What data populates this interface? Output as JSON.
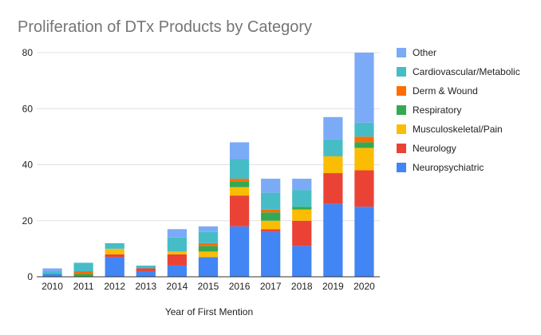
{
  "chart_data": {
    "type": "bar",
    "stacked": true,
    "title": "Proliferation of DTx Products by Category",
    "xlabel": "Year of First Mention",
    "ylabel": "",
    "ylim": [
      0,
      80
    ],
    "yticks": [
      0,
      20,
      40,
      60,
      80
    ],
    "grid": true,
    "legend_position": "right",
    "categories": [
      "2010",
      "2011",
      "2012",
      "2013",
      "2014",
      "2015",
      "2016",
      "2017",
      "2018",
      "2019",
      "2020"
    ],
    "series": [
      {
        "name": "Neuropsychiatric",
        "color": "#4285f4",
        "values": [
          1,
          0,
          7,
          2,
          4,
          7,
          18,
          16,
          11,
          26,
          25
        ]
      },
      {
        "name": "Neurology",
        "color": "#ea4335",
        "values": [
          0,
          0,
          1,
          1,
          4,
          0,
          11,
          1,
          9,
          11,
          13
        ]
      },
      {
        "name": "Musculoskeletal/Pain",
        "color": "#fbbc04",
        "values": [
          0,
          0,
          2,
          0,
          1,
          2,
          3,
          3,
          4,
          6,
          8
        ]
      },
      {
        "name": "Respiratory",
        "color": "#34a853",
        "values": [
          0,
          1,
          0,
          0,
          0,
          2,
          2,
          3,
          1,
          0,
          2
        ]
      },
      {
        "name": "Derm & Wound",
        "color": "#ff6d01",
        "values": [
          0,
          1,
          0,
          0,
          0,
          1,
          1,
          1,
          0,
          0,
          2
        ]
      },
      {
        "name": "Cardiovascular/Metabolic",
        "color": "#46bdc6",
        "values": [
          1,
          3,
          2,
          1,
          5,
          4,
          7,
          6,
          6,
          6,
          5
        ]
      },
      {
        "name": "Other",
        "color": "#7baaf7",
        "values": [
          1,
          0,
          0,
          0,
          3,
          2,
          6,
          5,
          4,
          8,
          25
        ]
      }
    ],
    "legend_order": [
      "Other",
      "Cardiovascular/Metabolic",
      "Derm & Wound",
      "Respiratory",
      "Musculoskeletal/Pain",
      "Neurology",
      "Neuropsychiatric"
    ]
  }
}
